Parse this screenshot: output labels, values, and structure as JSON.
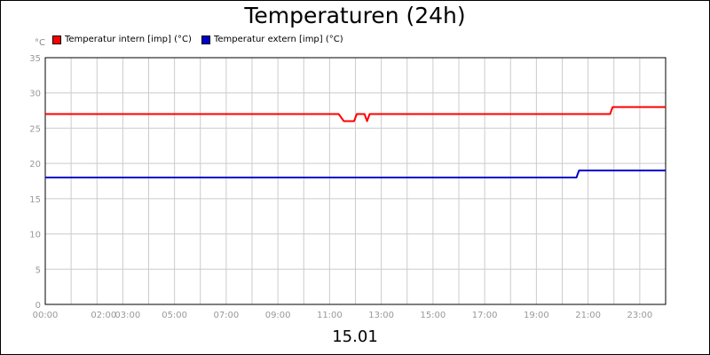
{
  "chart_data": {
    "type": "line",
    "title": "Temperaturen (24h)",
    "ylabel": "°C",
    "xlabel": "15.01",
    "ylim": [
      0,
      35
    ],
    "xlim": [
      0,
      24
    ],
    "y_ticks": [
      0,
      5,
      10,
      15,
      20,
      25,
      30,
      35
    ],
    "x_ticks": [
      {
        "t": 0,
        "label": "00:00"
      },
      {
        "t": 2,
        "label": "02:00"
      },
      {
        "t": 3,
        "label": "03:00"
      },
      {
        "t": 5,
        "label": "05:00"
      },
      {
        "t": 7,
        "label": "07:00"
      },
      {
        "t": 9,
        "label": "09:00"
      },
      {
        "t": 11,
        "label": "11:00"
      },
      {
        "t": 13,
        "label": "13:00"
      },
      {
        "t": 15,
        "label": "15:00"
      },
      {
        "t": 17,
        "label": "17:00"
      },
      {
        "t": 19,
        "label": "19:00"
      },
      {
        "t": 21,
        "label": "21:00"
      },
      {
        "t": 23,
        "label": "23:00"
      }
    ],
    "grid": true,
    "legend": "top-left",
    "series": [
      {
        "name": "Temperatur intern [imp] (°C)",
        "color": "#ff0000",
        "x": [
          0,
          11.35,
          11.55,
          11.95,
          12.05,
          12.35,
          12.45,
          12.55,
          21.85,
          21.95,
          24
        ],
        "y": [
          27,
          27,
          26,
          26,
          27,
          27,
          26,
          27,
          27,
          28,
          28
        ]
      },
      {
        "name": "Temperatur extern [imp] (°C)",
        "color": "#0000cc",
        "x": [
          0,
          20.55,
          20.65,
          24
        ],
        "y": [
          18,
          18,
          19,
          19
        ]
      }
    ]
  }
}
